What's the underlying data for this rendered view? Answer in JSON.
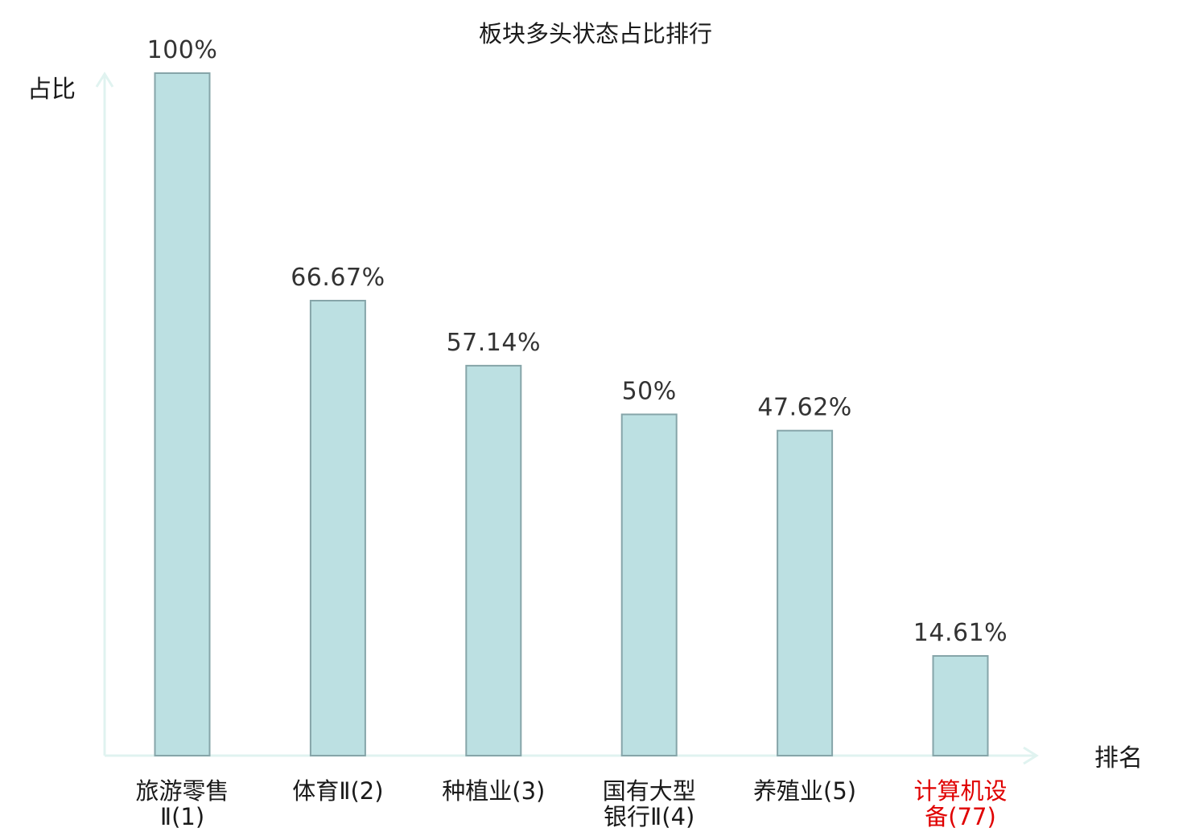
{
  "chart_data": {
    "type": "bar",
    "title": "板块多头状态占比排行",
    "ylabel": "占比",
    "xlabel": "排名",
    "categories": [
      {
        "lines": [
          "旅游零售",
          "Ⅱ(1)"
        ],
        "highlight": false
      },
      {
        "lines": [
          "体育Ⅱ(2)"
        ],
        "highlight": false
      },
      {
        "lines": [
          "种植业(3)"
        ],
        "highlight": false
      },
      {
        "lines": [
          "国有大型",
          "银行Ⅱ(4)"
        ],
        "highlight": false
      },
      {
        "lines": [
          "养殖业(5)"
        ],
        "highlight": false
      },
      {
        "lines": [
          "计算机设",
          "备(77)"
        ],
        "highlight": true
      }
    ],
    "values": [
      100,
      66.67,
      57.14,
      50,
      47.62,
      14.61
    ],
    "value_labels": [
      "100%",
      "66.67%",
      "57.14%",
      "50%",
      "47.62%",
      "14.61%"
    ],
    "ylim": [
      0,
      100
    ],
    "grid": false,
    "legend": "none",
    "colors": {
      "bar_fill": "#bce0e2",
      "bar_stroke": "#86a5a9",
      "axis": "#e0f3f0",
      "highlight_text": "#e00000"
    }
  }
}
